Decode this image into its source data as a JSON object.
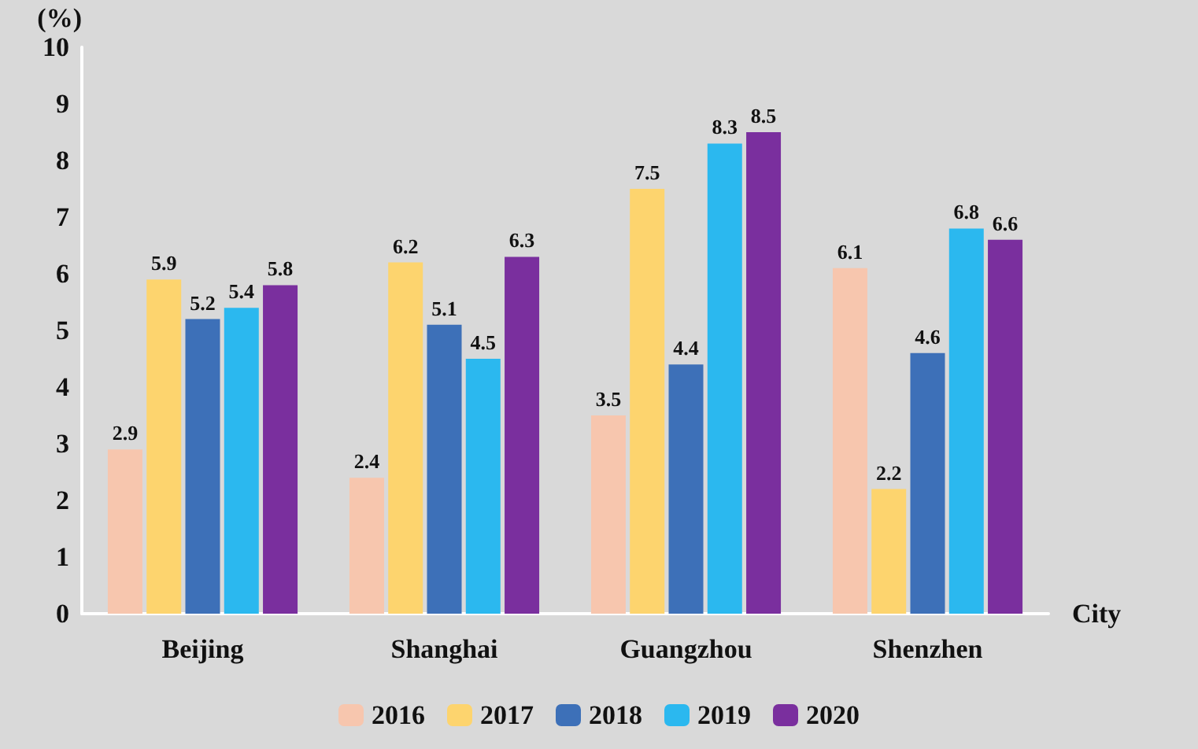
{
  "chart_data": {
    "type": "bar",
    "xlabel": "City",
    "ylabel": "(%)",
    "categories": [
      "Beijing",
      "Shanghai",
      "Guangzhou",
      "Shenzhen"
    ],
    "series": [
      {
        "name": "2016",
        "color": "#f7c6ae",
        "values": [
          2.9,
          2.4,
          3.5,
          6.1
        ]
      },
      {
        "name": "2017",
        "color": "#fdd46e",
        "values": [
          5.9,
          6.2,
          7.5,
          2.2
        ]
      },
      {
        "name": "2018",
        "color": "#3d70b8",
        "values": [
          5.2,
          5.1,
          4.4,
          4.6
        ]
      },
      {
        "name": "2019",
        "color": "#2bb8ef",
        "values": [
          5.4,
          4.5,
          8.3,
          6.8
        ]
      },
      {
        "name": "2020",
        "color": "#7a2f9e",
        "values": [
          5.8,
          6.3,
          8.5,
          6.6
        ]
      }
    ],
    "ylim": [
      0,
      10
    ],
    "yticks": [
      0,
      1,
      2,
      3,
      4,
      5,
      6,
      7,
      8,
      9,
      10
    ],
    "grid": false,
    "legend": "bottom",
    "data_labels": true
  }
}
